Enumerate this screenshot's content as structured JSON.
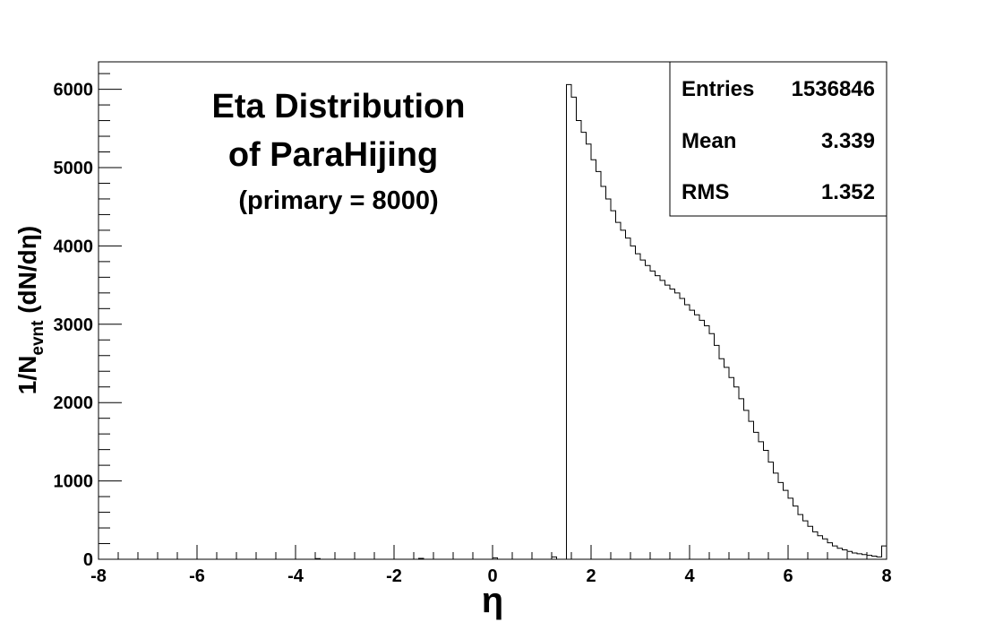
{
  "chart_data": {
    "type": "histogram",
    "title_lines": [
      "Eta Distribution",
      "of ParaHijing"
    ],
    "subtitle": "(primary = 8000)",
    "xlabel": "η",
    "ylabel": {
      "main": "1/N",
      "sub": "evnt",
      "tail": " (dN/dη)"
    },
    "xlim": [
      -8,
      8
    ],
    "ylim": [
      0,
      6350
    ],
    "x_ticks": [
      -8,
      -6,
      -4,
      -2,
      0,
      2,
      4,
      6,
      8
    ],
    "x_tick_labels": [
      "-8",
      "-6",
      "-4",
      "-2",
      "0",
      "2",
      "4",
      "6",
      "8"
    ],
    "y_ticks": [
      0,
      1000,
      2000,
      3000,
      4000,
      5000,
      6000
    ],
    "y_tick_labels": [
      "0",
      "1000",
      "2000",
      "3000",
      "4000",
      "5000",
      "6000"
    ],
    "bin_width": 0.1,
    "x_start": -8,
    "values": [
      0,
      0,
      0,
      0,
      0,
      0,
      0,
      0,
      0,
      0,
      0,
      0,
      0,
      0,
      0,
      0,
      0,
      0,
      0,
      0,
      0,
      0,
      0,
      0,
      0,
      0,
      0,
      0,
      0,
      0,
      0,
      0,
      0,
      0,
      0,
      0,
      0,
      0,
      0,
      0,
      0,
      0,
      0,
      0,
      0,
      0,
      0,
      0,
      0,
      0,
      0,
      0,
      0,
      0,
      0,
      0,
      0,
      0,
      0,
      0,
      0,
      0,
      0,
      0,
      0,
      0,
      0,
      0,
      0,
      0,
      0,
      0,
      0,
      0,
      0,
      0,
      0,
      0,
      0,
      0,
      0,
      0,
      0,
      0,
      0,
      0,
      0,
      0,
      0,
      0,
      0,
      0,
      0,
      0,
      0,
      0,
      0,
      0,
      0,
      0,
      0,
      0,
      0,
      0,
      0,
      0,
      0,
      0,
      0,
      0,
      0,
      0,
      0,
      0,
      0,
      0,
      0,
      0,
      0,
      0,
      0,
      0,
      0,
      0,
      0,
      0,
      0,
      0,
      0,
      0,
      0,
      0,
      0,
      0,
      0,
      0,
      0,
      0,
      0,
      0,
      0,
      0,
      0,
      0,
      0,
      0,
      0,
      0,
      0,
      0,
      0,
      0,
      0,
      0,
      0,
      0,
      0,
      0,
      0,
      0,
      0,
      0,
      0,
      0,
      0,
      0,
      0,
      0,
      0,
      0,
      0,
      0,
      0,
      0,
      0,
      0,
      0,
      0,
      0,
      0,
      0,
      0,
      0,
      0,
      0,
      0,
      0,
      0,
      0,
      0,
      0,
      0,
      0,
      0,
      0,
      0,
      0,
      0,
      0,
      0,
      0,
      0,
      0,
      0,
      0,
      0,
      0,
      0,
      0,
      0,
      0,
      0,
      0,
      0,
      0,
      0,
      0,
      0,
      0,
      0,
      0,
      0,
      0,
      0,
      0,
      0,
      0,
      0,
      0,
      0,
      0,
      0,
      0,
      0,
      0,
      0,
      0,
      0,
      0,
      0,
      0,
      0,
      0,
      0,
      0,
      0,
      0,
      0,
      0,
      0,
      0,
      0,
      0,
      0,
      0,
      0,
      0,
      0,
      0,
      0,
      0,
      0,
      0,
      0,
      0,
      0,
      0,
      0,
      0,
      0,
      0,
      0,
      0,
      0,
      0,
      0,
      0,
      0,
      0,
      0,
      0,
      0,
      0,
      0,
      0,
      0,
      0,
      0,
      0,
      0,
      0,
      0,
      0,
      0,
      0,
      0,
      0,
      0,
      0,
      0,
      0,
      0,
      0,
      0,
      0,
      0,
      0,
      0,
      0,
      0,
      0,
      0,
      0,
      0,
      0,
      0,
      0,
      0,
      0,
      0,
      0,
      0,
      0,
      0,
      0,
      0,
      0,
      0,
      0,
      0,
      0,
      0,
      0,
      0,
      0,
      0,
      0,
      0,
      0,
      0,
      0,
      0,
      0,
      0,
      0,
      0,
      0,
      0,
      0,
      0,
      0,
      0,
      0,
      0,
      0,
      0,
      0,
      0,
      0,
      0,
      0,
      0,
      0,
      0,
      0,
      0,
      0,
      0,
      0,
      0,
      0,
      0,
      0,
      0,
      0,
      0,
      0,
      0,
      0,
      0,
      0,
      0,
      0,
      0,
      0,
      0,
      0,
      0,
      0,
      0,
      0,
      0,
      0,
      0,
      0,
      0,
      0,
      0,
      0,
      0,
      0,
      0,
      0,
      0,
      0,
      0,
      0,
      0,
      0,
      0,
      0,
      0,
      0,
      0,
      0,
      0,
      0,
      0,
      0,
      0,
      0,
      0,
      0,
      0,
      0,
      0,
      0,
      0,
      0,
      0,
      0,
      0,
      0,
      0,
      0,
      0,
      0,
      0,
      0,
      0,
      0,
      0,
      0,
      0,
      0,
      0,
      0,
      0,
      0,
      0,
      0,
      0,
      0,
      0,
      0,
      0,
      0,
      0,
      0,
      0,
      0,
      0,
      0,
      0,
      0,
      0,
      0,
      0,
      0,
      0,
      0,
      0,
      0,
      0,
      0,
      0,
      0,
      0,
      0,
      0,
      0,
      0,
      0,
      0,
      0,
      0,
      0,
      0,
      0,
      0,
      0,
      0,
      0,
      0,
      0,
      0,
      0,
      0,
      0,
      0,
      0,
      0,
      0,
      0,
      0,
      0,
      0,
      0,
      0,
      0,
      0,
      0,
      0,
      0,
      0,
      0,
      0,
      0,
      0,
      0,
      0,
      0,
      0,
      0,
      0,
      0,
      0,
      0,
      0,
      0,
      0,
      0,
      0,
      0,
      0,
      0,
      0,
      0,
      0,
      0,
      0,
      0,
      0,
      0,
      0,
      0,
      0,
      0,
      0,
      0,
      0,
      0,
      0,
      0,
      0,
      0,
      0,
      0,
      0,
      0
    ],
    "bins_x": [
      1.5,
      1.6,
      1.7,
      1.8,
      1.9,
      2.0,
      2.1,
      2.2,
      2.3,
      2.4,
      2.5,
      2.6,
      2.7,
      2.8,
      2.9,
      3.0,
      3.1,
      3.2,
      3.3,
      3.4,
      3.5,
      3.6,
      3.7,
      3.8,
      3.9,
      4.0,
      4.1,
      4.2,
      4.3,
      4.4,
      4.5,
      4.6,
      4.7,
      4.8,
      4.9,
      5.0,
      5.1,
      5.2,
      5.3,
      5.4,
      5.5,
      5.6,
      5.7,
      5.8,
      5.9,
      6.0,
      6.1,
      6.2,
      6.3,
      6.4,
      6.5,
      6.6,
      6.7,
      6.8,
      6.9,
      7.0,
      7.1,
      7.2,
      7.3,
      7.4,
      7.5,
      7.6,
      7.7,
      7.8,
      7.9
    ],
    "bins_y": [
      6060,
      5900,
      5600,
      5450,
      5300,
      5100,
      4950,
      4760,
      4600,
      4450,
      4300,
      4200,
      4100,
      4000,
      3900,
      3820,
      3750,
      3680,
      3620,
      3560,
      3500,
      3450,
      3400,
      3330,
      3250,
      3180,
      3120,
      3050,
      2980,
      2880,
      2730,
      2560,
      2450,
      2320,
      2200,
      2050,
      1900,
      1760,
      1620,
      1500,
      1390,
      1240,
      1100,
      980,
      880,
      780,
      680,
      570,
      490,
      420,
      350,
      300,
      260,
      210,
      170,
      140,
      120,
      100,
      80,
      70,
      60,
      50,
      40,
      30,
      170
    ],
    "low_x": [
      -3.6,
      -1.5,
      0.0,
      1.2
    ],
    "low_y": [
      8,
      12,
      18,
      30
    ],
    "stats": {
      "entries_label": "Entries",
      "entries_value": "1536846",
      "mean_label": "Mean",
      "mean_value": "3.339",
      "rms_label": "RMS",
      "rms_value": "1.352"
    }
  }
}
